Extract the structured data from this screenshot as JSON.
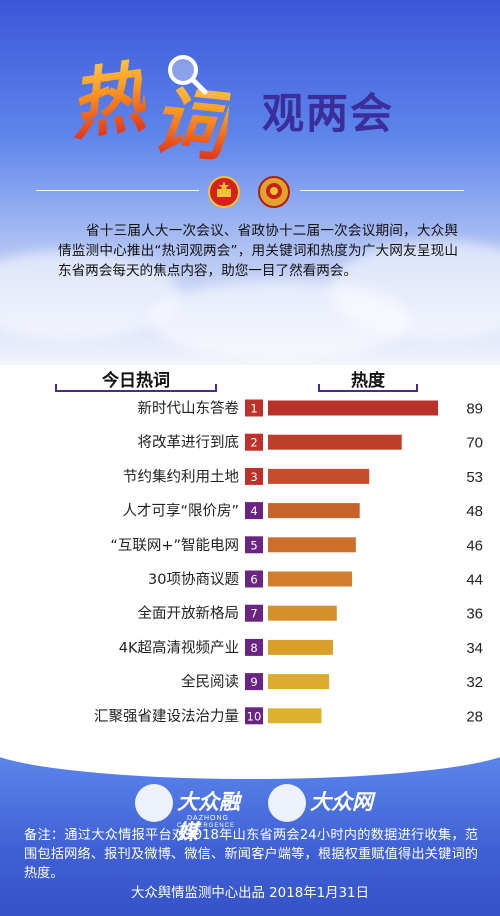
{
  "header": {
    "title_char_1": "热",
    "title_char_2": "词",
    "title_rest": "观两会",
    "intro": "省十三届人大一次会议、省政协十二届一次会议期间，大众舆情监测中心推出“热词观两会”，用关键词和热度为广大网友呈现山东省两会每天的焦点内容，助您一目了然看两会。"
  },
  "columns": {
    "left": "今日热词",
    "right": "热度"
  },
  "chart_data": {
    "type": "bar",
    "orientation": "horizontal",
    "categories": [
      "新时代山东答卷",
      "将改革进行到底",
      "节约集约利用土地",
      "人才可享“限价房”",
      "“互联网+”智能电网",
      "30项协商议题",
      "全面开放新格局",
      "4K超高清视频产业",
      "全民阅读",
      "汇聚强省建设法治力量"
    ],
    "ranks": [
      "1",
      "2",
      "3",
      "4",
      "5",
      "6",
      "7",
      "8",
      "9",
      "10"
    ],
    "values": [
      89,
      70,
      53,
      48,
      46,
      44,
      36,
      34,
      32,
      28
    ],
    "xlim": [
      0,
      89
    ],
    "bar_colors": [
      "#b9312b",
      "#be3f29",
      "#c24e2a",
      "#c7622b",
      "#cb6f2b",
      "#d17e2d",
      "#d58f2c",
      "#d99e2c",
      "#dcab2e",
      "#ddb22f"
    ],
    "rank_colors": [
      "#c0302b",
      "#c0302b",
      "#c0302b",
      "#6a2584",
      "#6a2584",
      "#6a2584",
      "#6a2584",
      "#6a2584",
      "#6a2584",
      "#6a2584"
    ],
    "grid": false
  },
  "footer": {
    "logo1_name": "大众融媒",
    "logo1_en1": "DAZHONG",
    "logo1_en2": "CONVERGENCE MEDIA",
    "logo2_name": "大众网",
    "logo2_en": "WWW.DZWWW.COM",
    "note": "备注：通过大众情报平台对2018年山东省两会24小时内的数据进行收集，范围包括网络、报刊及微博、微信、新闻客户端等，根据权重赋值得出关键词的热度。",
    "credit": "大众舆情监测中心出品 2018年1月31日"
  }
}
